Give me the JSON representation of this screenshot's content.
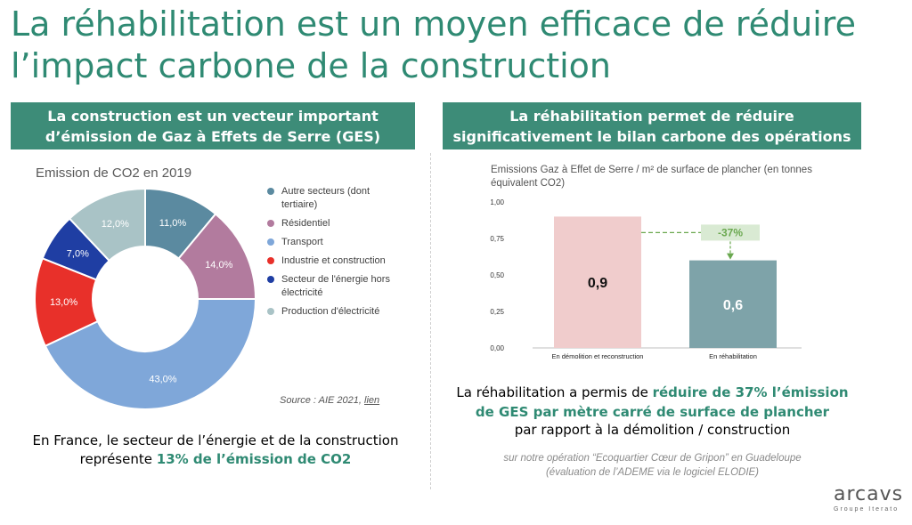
{
  "page_title": "La réhabilitation est un moyen efficace de réduire l’impact carbone de la construction",
  "left_panel": {
    "header_line1": "La construction est un vecteur important",
    "header_line2": "d’émission de Gaz à Effets de Serre (GES)",
    "source_prefix": "Source : AIE 2021,",
    "source_link": "lien",
    "note_line1": "En France, le secteur de l’énergie et de la construction",
    "note_line2_prefix": "représente",
    "note_line2_highlight": "13% de l’émission de CO2"
  },
  "right_panel": {
    "header_line1": "La réhabilitation permet de réduire",
    "header_line2": "significativement le bilan carbone des opérations",
    "note_prefix": "La réhabilitation a permis de",
    "note_highlight_1": "réduire de 37% l’émission",
    "note_highlight_2": "de GES par mètre carré de surface de plancher",
    "note_line3": "par rapport à la démolition / construction",
    "detail_line1": "sur notre opération “Ecoquartier Cœur de Gripon” en Guadeloupe",
    "detail_line2": "(évaluation de l’ADEME via le logiciel ELODIE)"
  },
  "logo": {
    "name": "arcavs",
    "tagline": "Groupe Iterato"
  },
  "chart_data": [
    {
      "type": "pie",
      "title": "Emission de CO2 en 2019",
      "donut": true,
      "legend_position": "right",
      "series": [
        {
          "name": "Autre secteurs (dont tertiaire)",
          "value": 11.0,
          "label": "11,0%",
          "color": "#5b8aa0"
        },
        {
          "name": "Résidentiel",
          "value": 14.0,
          "label": "14,0%",
          "color": "#b27b9e"
        },
        {
          "name": "Transport",
          "value": 43.0,
          "label": "43,0%",
          "color": "#7fa7d9"
        },
        {
          "name": "Industrie et construction",
          "value": 13.0,
          "label": "13,0%",
          "color": "#e8302a"
        },
        {
          "name": "Secteur de l'énergie hors électricité",
          "value": 7.0,
          "label": "7,0%",
          "color": "#1f3ea3"
        },
        {
          "name": "Production d'électricité",
          "value": 12.0,
          "label": "12,0%",
          "color": "#a9c3c6"
        }
      ]
    },
    {
      "type": "bar",
      "title": "Emissions Gaz à Effet de Serre / m² de surface de plancher (en tonnes équivalent CO2)",
      "categories": [
        "En démolition et reconstruction",
        "En réhabilitation"
      ],
      "values": [
        0.9,
        0.6
      ],
      "value_labels": [
        "0,9",
        "0,6"
      ],
      "colors": [
        "#f0cccc",
        "#7ea3a9"
      ],
      "label_colors": [
        "#111111",
        "#ffffff"
      ],
      "yticks": [
        "0,00",
        "0,25",
        "0,50",
        "0,75",
        "1,00"
      ],
      "ylim": [
        0,
        1
      ],
      "grid": false,
      "annotation": {
        "text": "-37%",
        "color": "#6aa84f",
        "fill": "#d9ead3"
      }
    }
  ]
}
